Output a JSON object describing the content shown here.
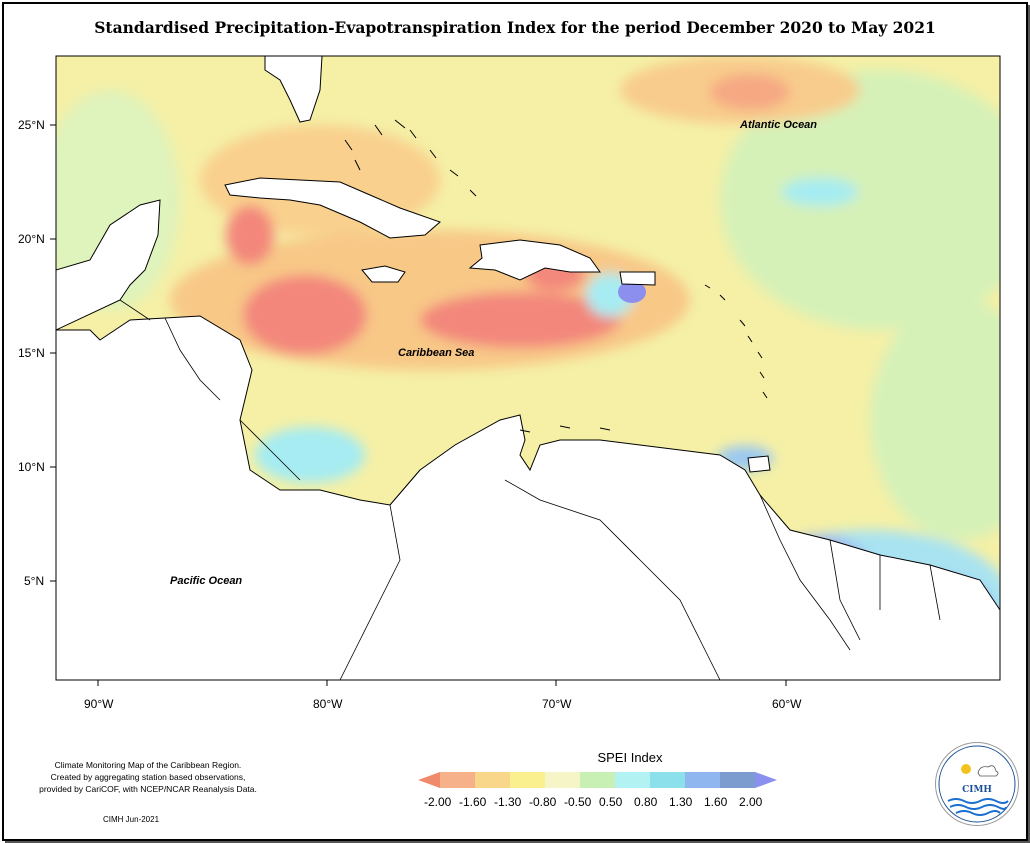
{
  "title": "Standardised Precipitation-Evapotranspiration Index for the period December 2020 to May 2021",
  "map": {
    "lat_ticks": [
      "25°N",
      "20°N",
      "15°N",
      "10°N",
      "5°N"
    ],
    "lon_ticks": [
      "90°W",
      "80°W",
      "70°W",
      "60°W"
    ],
    "labels": {
      "atlantic": "Atlantic Ocean",
      "caribbean": "Caribbean Sea",
      "pacific": "Pacific Ocean"
    }
  },
  "legend": {
    "title": "SPEI Index",
    "ticks": [
      "-2.00",
      "-1.60",
      "-1.30",
      "-0.80",
      "-0.50",
      "0.50",
      "0.80",
      "1.30",
      "1.60",
      "2.00"
    ],
    "colors": [
      "#f08a6c",
      "#f6b08a",
      "#f9d78a",
      "#fbf08f",
      "#f5f5c8",
      "#c8f0b4",
      "#b2f2f2",
      "#8ce0ec",
      "#8fb6ee",
      "#7c9cd0",
      "#8a8ff0"
    ]
  },
  "footer": {
    "line1": "Climate Monitoring Map of the Caribbean Region.",
    "line2": "Created by aggregating station based observations,",
    "line3": "provided by CariCOF, with NCEP/NCAR Reanalysis Data.",
    "credit": "CIMH Jun-2021"
  },
  "logo": {
    "name": "CIMH"
  }
}
